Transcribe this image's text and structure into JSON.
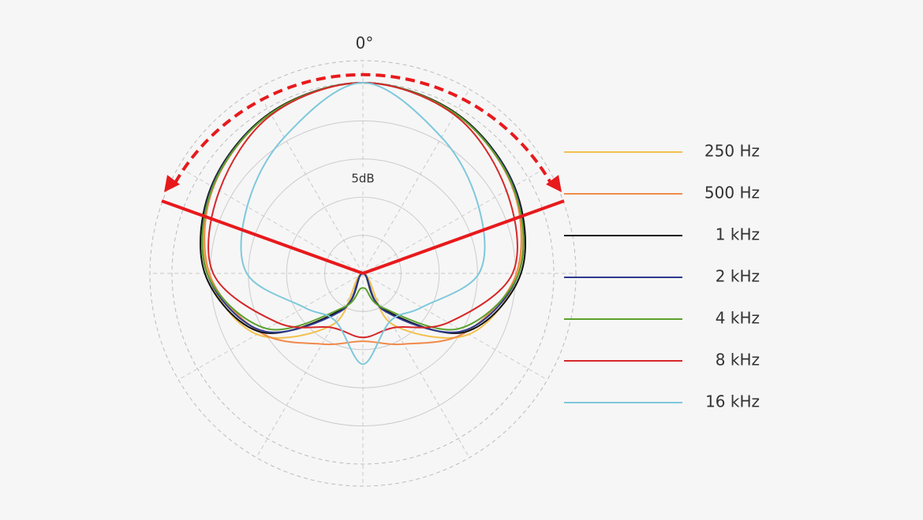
{
  "chart_data": {
    "type": "polar",
    "angle_label": "0°",
    "scale_label": "5dB",
    "angles": [
      0,
      30,
      60,
      90,
      120,
      150,
      180,
      210,
      240,
      270,
      300,
      330
    ],
    "rlim": [
      -25,
      0
    ],
    "rticks": [
      -20,
      -15,
      -10,
      -5,
      0
    ],
    "series": [
      {
        "name": "250 Hz",
        "color": "#f2c14e",
        "values": [
          0,
          -0.7,
          -2.3,
          -4.7,
          -9.0,
          -17.3,
          -25,
          -17.3,
          -9.0,
          -4.7,
          -2.3,
          -0.7
        ]
      },
      {
        "name": "500 Hz",
        "color": "#f08a4b",
        "values": [
          0,
          -0.8,
          -2.4,
          -4.9,
          -9.5,
          -14.3,
          -16.1,
          -14.3,
          -9.5,
          -4.9,
          -2.4,
          -0.8
        ]
      },
      {
        "name": "1 kHz",
        "color": "#111111",
        "values": [
          0,
          -0.7,
          -2.1,
          -4.3,
          -9.6,
          -19.6,
          -25,
          -19.6,
          -9.6,
          -4.3,
          -2.1,
          -0.7
        ]
      },
      {
        "name": "2 kHz",
        "color": "#2e3a8c",
        "values": [
          0,
          -0.8,
          -2.2,
          -4.6,
          -9.9,
          -19.3,
          -25,
          -19.3,
          -9.9,
          -4.6,
          -2.2,
          -0.8
        ]
      },
      {
        "name": "4 kHz",
        "color": "#5aa02c",
        "values": [
          0,
          -0.8,
          -2.3,
          -4.6,
          -10.5,
          -19.8,
          -23.1,
          -19.8,
          -10.5,
          -4.6,
          -2.3,
          -0.8
        ]
      },
      {
        "name": "8 kHz",
        "color": "#d62728",
        "values": [
          0,
          -1,
          -3.3,
          -5.4,
          -12.1,
          -16.8,
          -16.6,
          -16.8,
          -12.1,
          -5.4,
          -3.3,
          -1
        ]
      },
      {
        "name": "16 kHz",
        "color": "#7ec8dc",
        "values": [
          0,
          -4.4,
          -7.5,
          -9.8,
          -16.1,
          -17.8,
          -13.1,
          -17.8,
          -16.1,
          -9.8,
          -7.5,
          -4.4
        ]
      }
    ]
  }
}
